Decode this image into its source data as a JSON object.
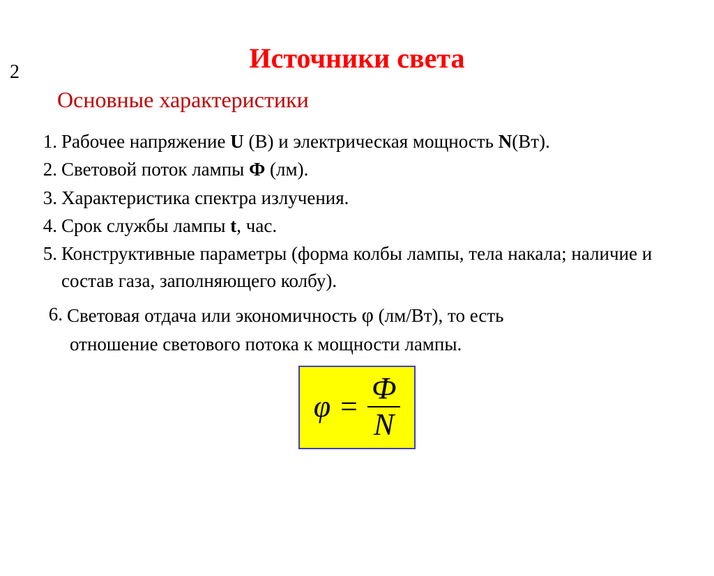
{
  "page_number": "2",
  "title": "Источники света",
  "subtitle": "Основные характеристики",
  "colors": {
    "title": "#ff0000",
    "subtitle": "#c00000",
    "body_text": "#000000",
    "formula_bg": "#ffff00",
    "formula_border": "#4040c0",
    "page_bg": "#ffffff"
  },
  "items": {
    "n1": "1.",
    "t1_a": "Рабочее напряжение ",
    "t1_b": "U",
    "t1_c": " (В) и электрическая мощность ",
    "t1_d": "N",
    "t1_e": "(Вт).",
    "n2": "2.",
    "t2_a": "Световой поток лампы ",
    "t2_b": "Ф",
    "t2_c": " (лм).",
    "n3": "3.",
    "t3": "Характеристика спектра излучения.",
    "n4": "4.",
    "t4_a": "Срок  службы лампы ",
    "t4_b": "t",
    "t4_c": ", час.",
    "n5": "5.",
    "t5": "Конструктивные параметры (форма колбы лампы, тела накала; наличие и состав газа, заполняющего колбу).",
    "n6": "6.",
    "t6_a": "Световая отдача или экономичность ",
    "t6_phi": "φ",
    "t6_b": " (лм/Вт), то есть",
    "t6_c": "отношение светового потока к мощности лампы."
  },
  "formula": {
    "lhs": "φ",
    "eq": "=",
    "numerator": "Ф",
    "denominator": "N"
  }
}
